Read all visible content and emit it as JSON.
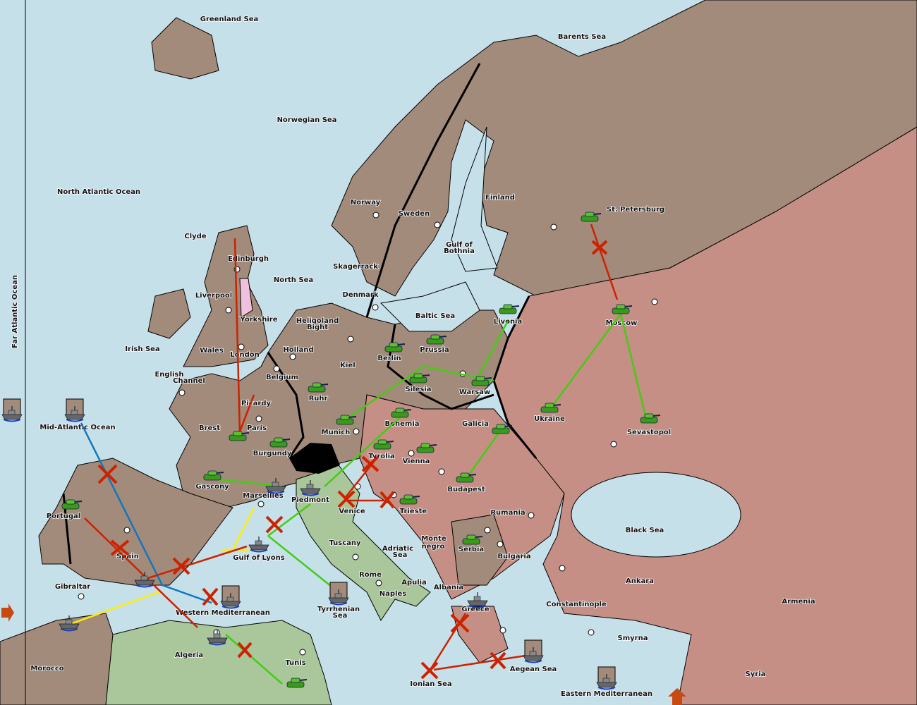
{
  "colors": {
    "sea": "#c6e0ea",
    "neutral_land": "#a38b7b",
    "russia_turkey": "#c58f86",
    "italy": "#a9c79a",
    "england": "#f0c0dc",
    "switzerland": "#000000",
    "move_success": "#44cc11",
    "move_failed": "#cc2200",
    "support": "#ffee00",
    "convoy": "#1177bb"
  },
  "labels": {
    "greenland_sea": "Greenland Sea",
    "barents_sea": "Barents Sea",
    "norwegian_sea": "Norwegian Sea",
    "north_atlantic": "North Atlantic Ocean",
    "far_atlantic": "Far Atlantic Ocean",
    "clyde": "Clyde",
    "edinburgh": "Edinburgh",
    "liverpool": "Liverpool",
    "yorkshire": "Yorkshire",
    "wales": "Wales",
    "london": "London",
    "irish_sea": "Irish Sea",
    "english_channel_1": "English",
    "english_channel_2": "Channel",
    "north_sea": "North Sea",
    "norway": "Norway",
    "sweden": "Sweden",
    "finland": "Finland",
    "st_petersburg": "St. Petersburg",
    "gulf_bothnia_1": "Gulf of",
    "gulf_bothnia_2": "Bothnia",
    "skagerrack": "Skagerrack",
    "denmark": "Denmark",
    "baltic_sea": "Baltic Sea",
    "heligoland_1": "Heligoland",
    "heligoland_2": "Bight",
    "holland": "Holland",
    "belgium": "Belgium",
    "kiel": "Kiel",
    "berlin": "Berlin",
    "prussia": "Prussia",
    "livonia": "Livonia",
    "moscow": "Moscow",
    "silesia": "Silesia",
    "warsaw": "Warsaw",
    "ruhr": "Ruhr",
    "munich": "Munich",
    "bohemia": "Bohemia",
    "galicia": "Galicia",
    "ukraine": "Ukraine",
    "sevastopol": "Sevastopol",
    "picardy": "Picardy",
    "paris": "Paris",
    "brest": "Brest",
    "burgundy": "Burgundy",
    "gascony": "Gascony",
    "marseilles": "Marseilles",
    "piedmont": "Piedmont",
    "tyrolia": "Tyrolia",
    "vienna": "Vienna",
    "budapest": "Budapest",
    "venice": "Venice",
    "trieste": "Trieste",
    "rumania": "Rumania",
    "black_sea": "Black Sea",
    "mid_atlantic": "Mid-Atlantic Ocean",
    "portugal": "Portugal",
    "spain": "Spain",
    "gulf_lyons": "Gulf of Lyons",
    "tuscany": "Tuscany",
    "adriatic_1": "Adriatic",
    "adriatic_2": "Sea",
    "montenegro_1": "Monte",
    "montenegro_2": "negro",
    "serbia": "Serbia",
    "bulgaria": "Bulgaria",
    "rome": "Rome",
    "apulia": "Apulia",
    "naples": "Naples",
    "albania": "Albania",
    "ankara": "Ankara",
    "armenia": "Armenia",
    "constantinople": "Constantinople",
    "gibraltar": "Gibraltar",
    "western_med": "Western Mediterranean",
    "tyrrhenian_1": "Tyrrhenian",
    "tyrrhenian_2": "Sea",
    "greece": "Greece",
    "smyrna": "Smyrna",
    "morocco": "Morocco",
    "algeria": "Algeria",
    "tunis": "Tunis",
    "ionian": "Ionian Sea",
    "aegean": "Aegean Sea",
    "eastern_med": "Eastern Mediterranean",
    "syria": "Syria"
  },
  "units": [
    {
      "type": "army",
      "province": "St. Petersburg"
    },
    {
      "type": "army",
      "province": "Moscow"
    },
    {
      "type": "army",
      "province": "Livonia"
    },
    {
      "type": "army",
      "province": "Prussia"
    },
    {
      "type": "army",
      "province": "Berlin"
    },
    {
      "type": "army",
      "province": "Silesia"
    },
    {
      "type": "army",
      "province": "Warsaw"
    },
    {
      "type": "army",
      "province": "Ukraine"
    },
    {
      "type": "army",
      "province": "Sevastopol"
    },
    {
      "type": "army",
      "province": "Ruhr"
    },
    {
      "type": "army",
      "province": "Munich"
    },
    {
      "type": "army",
      "province": "Bohemia"
    },
    {
      "type": "army",
      "province": "Galicia"
    },
    {
      "type": "army",
      "province": "Tyrolia"
    },
    {
      "type": "army",
      "province": "Vienna"
    },
    {
      "type": "army",
      "province": "Budapest"
    },
    {
      "type": "army",
      "province": "Trieste"
    },
    {
      "type": "army",
      "province": "Serbia"
    },
    {
      "type": "army",
      "province": "Paris"
    },
    {
      "type": "army",
      "province": "Burgundy"
    },
    {
      "type": "army",
      "province": "Gascony"
    },
    {
      "type": "army",
      "province": "Portugal"
    },
    {
      "type": "army",
      "province": "Tunis"
    },
    {
      "type": "fleet",
      "province": "Marseilles"
    },
    {
      "type": "fleet",
      "province": "Piedmont"
    },
    {
      "type": "fleet",
      "province": "Gulf of Lyons"
    },
    {
      "type": "fleet",
      "province": "Spain"
    },
    {
      "type": "fleet",
      "province": "Gibraltar"
    },
    {
      "type": "fleet",
      "province": "Western Mediterranean"
    },
    {
      "type": "fleet",
      "province": "Greece"
    },
    {
      "type": "fleet-retreat",
      "province": "Far Atlantic Ocean"
    },
    {
      "type": "fleet-retreat",
      "province": "Mid-Atlantic Ocean"
    },
    {
      "type": "fleet-retreat",
      "province": "Western Mediterranean"
    },
    {
      "type": "fleet-retreat",
      "province": "Tyrrhenian Sea"
    },
    {
      "type": "fleet-retreat",
      "province": "Aegean Sea"
    },
    {
      "type": "fleet-retreat",
      "province": "Eastern Mediterranean"
    }
  ],
  "scroll": {
    "left_icon": "arrow-right-icon",
    "down_icon": "arrow-up-icon"
  }
}
